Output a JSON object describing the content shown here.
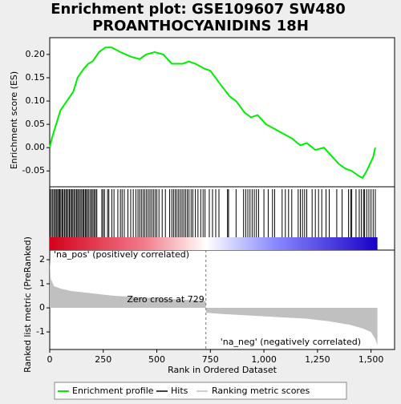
{
  "chart_data": {
    "type": "gsea",
    "title": "Enrichment plot: GSE109607 SW480",
    "subtitle": "PROANTHOCYANIDINS 18H",
    "xlabel": "Rank in Ordered Dataset",
    "ylabel": "Enrichment score (ES)",
    "y2label": "Ranked list metric (PreRanked)",
    "xlim": [
      0,
      1610
    ],
    "xticks": [
      0,
      250,
      500,
      750,
      {
        "value": 1000,
        "label": "1,000"
      },
      {
        "value": 1250,
        "label": "1,250"
      },
      {
        "value": 1500,
        "label": "1,500"
      }
    ],
    "ylim": [
      -0.084,
      0.236
    ],
    "yticks": [
      {
        "value": 0.2,
        "label": "0.20"
      },
      {
        "value": 0.15,
        "label": "0.15"
      },
      {
        "value": 0.1,
        "label": "0.10"
      },
      {
        "value": 0.05,
        "label": "0.05"
      },
      {
        "value": 0,
        "label": "0.00"
      },
      {
        "value": -0.05,
        "label": "-0.05"
      }
    ],
    "y2lim": [
      -1.73,
      2.4
    ],
    "y2ticks": [
      2,
      1,
      0,
      -1
    ],
    "series": [
      {
        "name": "Enrichment profile",
        "color": "#00ee00",
        "x": [
          0,
          10,
          30,
          50,
          80,
          110,
          130,
          160,
          180,
          200,
          230,
          260,
          290,
          330,
          380,
          420,
          450,
          490,
          530,
          570,
          620,
          650,
          680,
          720,
          750,
          790,
          840,
          870,
          910,
          940,
          970,
          1010,
          1050,
          1090,
          1130,
          1170,
          1200,
          1240,
          1280,
          1310,
          1350,
          1380,
          1410,
          1440,
          1460,
          1480,
          1510,
          1520
        ],
        "values": [
          0,
          0.02,
          0.05,
          0.08,
          0.1,
          0.12,
          0.15,
          0.17,
          0.18,
          0.185,
          0.205,
          0.215,
          0.215,
          0.205,
          0.195,
          0.19,
          0.2,
          0.205,
          0.2,
          0.18,
          0.18,
          0.185,
          0.18,
          0.17,
          0.165,
          0.14,
          0.11,
          0.1,
          0.075,
          0.065,
          0.07,
          0.05,
          0.04,
          0.03,
          0.02,
          0.005,
          0.01,
          -0.005,
          0,
          -0.015,
          -0.035,
          -0.045,
          -0.05,
          -0.06,
          -0.065,
          -0.05,
          -0.02,
          0
        ]
      },
      {
        "name": "Hits",
        "color": "#000000",
        "x": [
          2,
          8,
          14,
          20,
          26,
          31,
          37,
          42,
          47,
          52,
          58,
          63,
          69,
          75,
          80,
          86,
          92,
          97,
          103,
          108,
          114,
          120,
          126,
          131,
          137,
          143,
          149,
          155,
          160,
          166,
          171,
          177,
          183,
          190,
          196,
          202,
          208,
          214,
          220,
          243,
          249,
          256,
          270,
          276,
          290,
          300,
          318,
          330,
          338,
          348,
          365,
          378,
          390,
          402,
          412,
          420,
          428,
          436,
          444,
          452,
          460,
          468,
          476,
          484,
          492,
          500,
          510,
          525,
          540,
          560,
          570,
          578,
          586,
          594,
          602,
          610,
          618,
          626,
          634,
          642,
          650,
          660,
          668,
          680,
          692,
          705,
          716,
          725,
          745,
          760,
          775,
          790,
          830,
          835,
          870,
          905,
          915,
          925,
          935,
          945,
          955,
          965,
          975,
          1000,
          1020,
          1040,
          1050,
          1085,
          1100,
          1115,
          1130,
          1160,
          1170,
          1180,
          1190,
          1200,
          1225,
          1240,
          1255,
          1270,
          1290,
          1305,
          1340,
          1365,
          1395,
          1405,
          1410,
          1430,
          1445,
          1455,
          1465,
          1470,
          1480,
          1490,
          1500,
          1510,
          1520
        ]
      },
      {
        "name": "Ranking metric scores",
        "color": "#c0c0c0",
        "axis": "y2",
        "x": [
          0,
          5,
          20,
          50,
          100,
          200,
          300,
          400,
          500,
          600,
          700,
          728,
          730,
          800,
          900,
          1000,
          1100,
          1200,
          1300,
          1400,
          1460,
          1500,
          1520,
          1530
        ],
        "values": [
          2.0,
          1.2,
          0.9,
          0.8,
          0.7,
          0.6,
          0.5,
          0.45,
          0.4,
          0.35,
          0.3,
          0.28,
          -0.2,
          -0.25,
          -0.3,
          -0.35,
          -0.4,
          -0.45,
          -0.55,
          -0.7,
          -0.85,
          -1.0,
          -1.3,
          -1.55
        ]
      }
    ],
    "zero_cross": 729,
    "annotations": [
      "'na_pos' (positively correlated)",
      "Zero cross at 729",
      "'na_neg' (negatively correlated)"
    ]
  }
}
